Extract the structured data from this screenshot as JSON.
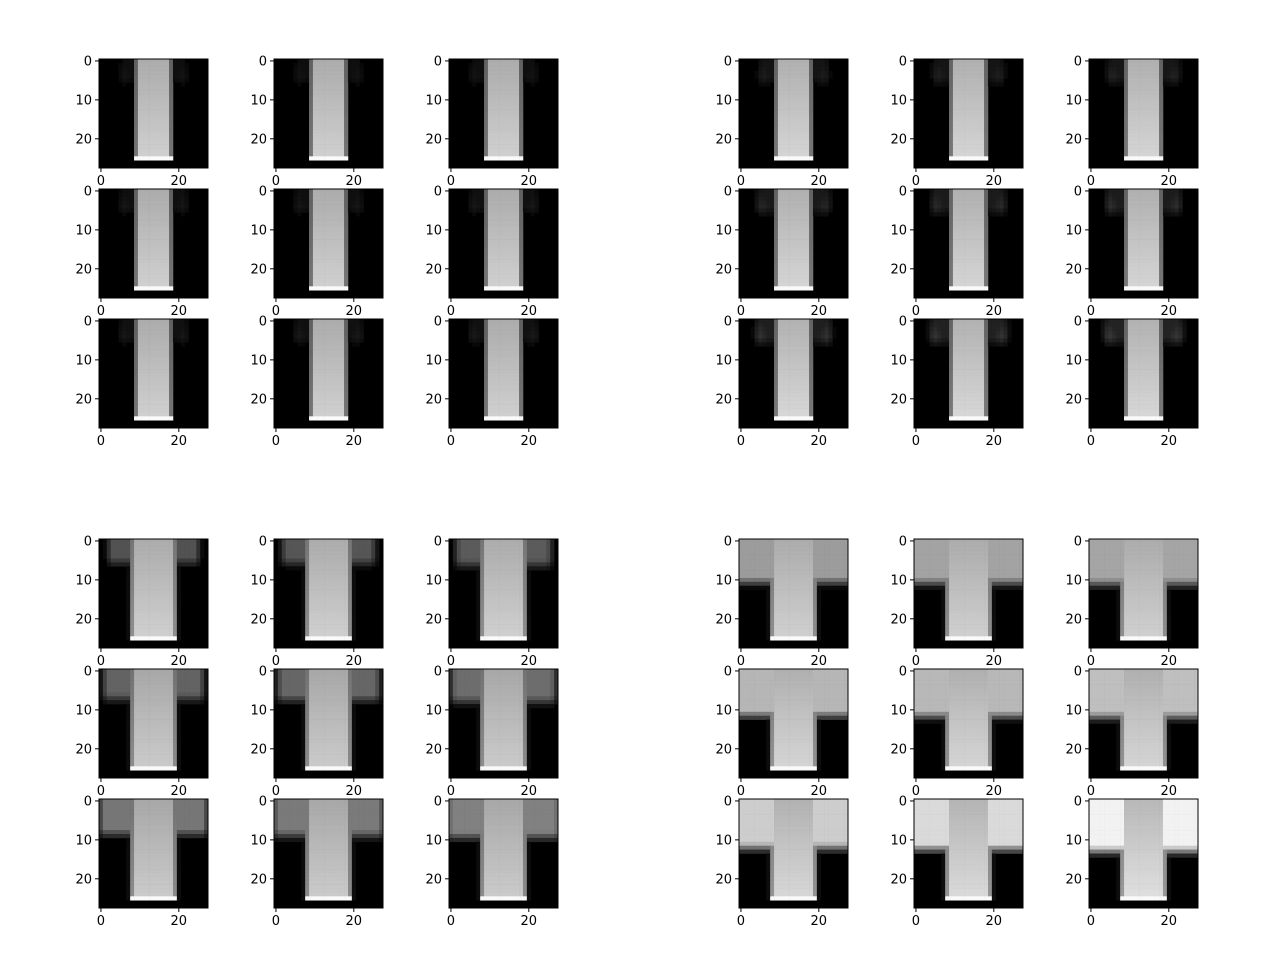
{
  "chart_data": {
    "type": "image-grid",
    "colormap": "gray",
    "image_size": [
      28,
      28
    ],
    "xticks": [
      0,
      20
    ],
    "yticks": [
      0,
      10,
      20
    ],
    "groups": [
      {
        "name": "group-top-left",
        "panels": [
          {
            "x_tick_labels": [
              "0",
              "20"
            ],
            "y_tick_labels": [
              "0",
              "10",
              "20"
            ],
            "shape": "sleeveless",
            "sleeve": 0.0,
            "shoulder": 0.55,
            "bright": 0.82
          },
          {
            "x_tick_labels": [
              "0",
              "20"
            ],
            "y_tick_labels": [
              "0",
              "10",
              "20"
            ],
            "shape": "sleeveless",
            "sleeve": 0.0,
            "shoulder": 0.55,
            "bright": 0.82
          },
          {
            "x_tick_labels": [
              "0",
              "20"
            ],
            "y_tick_labels": [
              "0",
              "10",
              "20"
            ],
            "shape": "sleeveless",
            "sleeve": 0.0,
            "shoulder": 0.55,
            "bright": 0.82
          },
          {
            "x_tick_labels": [
              "0",
              "20"
            ],
            "y_tick_labels": [
              "0",
              "10",
              "20"
            ],
            "shape": "sleeveless",
            "sleeve": 0.02,
            "shoulder": 0.55,
            "bright": 0.82
          },
          {
            "x_tick_labels": [
              "0",
              "20"
            ],
            "y_tick_labels": [
              "0",
              "10",
              "20"
            ],
            "shape": "sleeveless",
            "sleeve": 0.02,
            "shoulder": 0.55,
            "bright": 0.82
          },
          {
            "x_tick_labels": [
              "0",
              "20"
            ],
            "y_tick_labels": [
              "0",
              "10",
              "20"
            ],
            "shape": "sleeveless",
            "sleeve": 0.03,
            "shoulder": 0.55,
            "bright": 0.82
          },
          {
            "x_tick_labels": [
              "0",
              "20"
            ],
            "y_tick_labels": [
              "0",
              "10",
              "20"
            ],
            "shape": "sleeveless",
            "sleeve": 0.03,
            "shoulder": 0.55,
            "bright": 0.82
          },
          {
            "x_tick_labels": [
              "0",
              "20"
            ],
            "y_tick_labels": [
              "0",
              "10",
              "20"
            ],
            "shape": "sleeveless",
            "sleeve": 0.04,
            "shoulder": 0.55,
            "bright": 0.82
          },
          {
            "x_tick_labels": [
              "0",
              "20"
            ],
            "y_tick_labels": [
              "0",
              "10",
              "20"
            ],
            "shape": "sleeveless",
            "sleeve": 0.05,
            "shoulder": 0.55,
            "bright": 0.82
          }
        ]
      },
      {
        "name": "group-top-right",
        "panels": [
          {
            "x_tick_labels": [
              "0",
              "20"
            ],
            "y_tick_labels": [
              "0",
              "10",
              "20"
            ],
            "shape": "sleeveless",
            "sleeve": 0.06,
            "shoulder": 0.6,
            "bright": 0.84
          },
          {
            "x_tick_labels": [
              "0",
              "20"
            ],
            "y_tick_labels": [
              "0",
              "10",
              "20"
            ],
            "shape": "sleeveless",
            "sleeve": 0.08,
            "shoulder": 0.6,
            "bright": 0.84
          },
          {
            "x_tick_labels": [
              "0",
              "20"
            ],
            "y_tick_labels": [
              "0",
              "10",
              "20"
            ],
            "shape": "sleeveless",
            "sleeve": 0.1,
            "shoulder": 0.6,
            "bright": 0.84
          },
          {
            "x_tick_labels": [
              "0",
              "20"
            ],
            "y_tick_labels": [
              "0",
              "10",
              "20"
            ],
            "shape": "sleeveless",
            "sleeve": 0.12,
            "shoulder": 0.62,
            "bright": 0.84
          },
          {
            "x_tick_labels": [
              "0",
              "20"
            ],
            "y_tick_labels": [
              "0",
              "10",
              "20"
            ],
            "shape": "sleeveless",
            "sleeve": 0.14,
            "shoulder": 0.62,
            "bright": 0.84
          },
          {
            "x_tick_labels": [
              "0",
              "20"
            ],
            "y_tick_labels": [
              "0",
              "10",
              "20"
            ],
            "shape": "sleeveless",
            "sleeve": 0.16,
            "shoulder": 0.62,
            "bright": 0.84
          },
          {
            "x_tick_labels": [
              "0",
              "20"
            ],
            "y_tick_labels": [
              "0",
              "10",
              "20"
            ],
            "shape": "sleeveless",
            "sleeve": 0.18,
            "shoulder": 0.64,
            "bright": 0.85
          },
          {
            "x_tick_labels": [
              "0",
              "20"
            ],
            "y_tick_labels": [
              "0",
              "10",
              "20"
            ],
            "shape": "sleeveless",
            "sleeve": 0.2,
            "shoulder": 0.64,
            "bright": 0.85
          },
          {
            "x_tick_labels": [
              "0",
              "20"
            ],
            "y_tick_labels": [
              "0",
              "10",
              "20"
            ],
            "shape": "sleeveless",
            "sleeve": 0.22,
            "shoulder": 0.64,
            "bright": 0.85
          }
        ]
      },
      {
        "name": "group-bottom-left",
        "panels": [
          {
            "x_tick_labels": [
              "0",
              "20"
            ],
            "y_tick_labels": [
              "0",
              "10",
              "20"
            ],
            "shape": "tshirt",
            "sleeve": 0.28,
            "shoulder": 0.65,
            "bright": 0.82
          },
          {
            "x_tick_labels": [
              "0",
              "20"
            ],
            "y_tick_labels": [
              "0",
              "10",
              "20"
            ],
            "shape": "tshirt",
            "sleeve": 0.32,
            "shoulder": 0.65,
            "bright": 0.82
          },
          {
            "x_tick_labels": [
              "0",
              "20"
            ],
            "y_tick_labels": [
              "0",
              "10",
              "20"
            ],
            "shape": "tshirt",
            "sleeve": 0.36,
            "shoulder": 0.66,
            "bright": 0.82
          },
          {
            "x_tick_labels": [
              "0",
              "20"
            ],
            "y_tick_labels": [
              "0",
              "10",
              "20"
            ],
            "shape": "tshirt",
            "sleeve": 0.45,
            "shoulder": 0.68,
            "bright": 0.8
          },
          {
            "x_tick_labels": [
              "0",
              "20"
            ],
            "y_tick_labels": [
              "0",
              "10",
              "20"
            ],
            "shape": "tshirt",
            "sleeve": 0.48,
            "shoulder": 0.68,
            "bright": 0.8
          },
          {
            "x_tick_labels": [
              "0",
              "20"
            ],
            "y_tick_labels": [
              "0",
              "10",
              "20"
            ],
            "shape": "tshirt",
            "sleeve": 0.52,
            "shoulder": 0.7,
            "bright": 0.8
          },
          {
            "x_tick_labels": [
              "0",
              "20"
            ],
            "y_tick_labels": [
              "0",
              "10",
              "20"
            ],
            "shape": "tshirt",
            "sleeve": 0.58,
            "shoulder": 0.72,
            "bright": 0.8
          },
          {
            "x_tick_labels": [
              "0",
              "20"
            ],
            "y_tick_labels": [
              "0",
              "10",
              "20"
            ],
            "shape": "tshirt",
            "sleeve": 0.62,
            "shoulder": 0.72,
            "bright": 0.8
          },
          {
            "x_tick_labels": [
              "0",
              "20"
            ],
            "y_tick_labels": [
              "0",
              "10",
              "20"
            ],
            "shape": "tshirt",
            "sleeve": 0.66,
            "shoulder": 0.74,
            "bright": 0.8
          }
        ]
      },
      {
        "name": "group-bottom-right",
        "panels": [
          {
            "x_tick_labels": [
              "0",
              "20"
            ],
            "y_tick_labels": [
              "0",
              "10",
              "20"
            ],
            "shape": "tshirt",
            "sleeve": 0.78,
            "shoulder": 0.8,
            "bright": 0.82
          },
          {
            "x_tick_labels": [
              "0",
              "20"
            ],
            "y_tick_labels": [
              "0",
              "10",
              "20"
            ],
            "shape": "tshirt",
            "sleeve": 0.8,
            "shoulder": 0.82,
            "bright": 0.82
          },
          {
            "x_tick_labels": [
              "0",
              "20"
            ],
            "y_tick_labels": [
              "0",
              "10",
              "20"
            ],
            "shape": "tshirt",
            "sleeve": 0.82,
            "shoulder": 0.82,
            "bright": 0.82
          },
          {
            "x_tick_labels": [
              "0",
              "20"
            ],
            "y_tick_labels": [
              "0",
              "10",
              "20"
            ],
            "shape": "tshirt",
            "sleeve": 0.86,
            "shoulder": 0.86,
            "bright": 0.84
          },
          {
            "x_tick_labels": [
              "0",
              "20"
            ],
            "y_tick_labels": [
              "0",
              "10",
              "20"
            ],
            "shape": "tshirt",
            "sleeve": 0.88,
            "shoulder": 0.86,
            "bright": 0.84
          },
          {
            "x_tick_labels": [
              "0",
              "20"
            ],
            "y_tick_labels": [
              "0",
              "10",
              "20"
            ],
            "shape": "tshirt",
            "sleeve": 0.9,
            "shoulder": 0.88,
            "bright": 0.84
          },
          {
            "x_tick_labels": [
              "0",
              "20"
            ],
            "y_tick_labels": [
              "0",
              "10",
              "20"
            ],
            "shape": "tshirt",
            "sleeve": 0.92,
            "shoulder": 0.92,
            "bright": 0.85
          },
          {
            "x_tick_labels": [
              "0",
              "20"
            ],
            "y_tick_labels": [
              "0",
              "10",
              "20"
            ],
            "shape": "tshirt",
            "sleeve": 0.95,
            "shoulder": 0.95,
            "bright": 0.86
          },
          {
            "x_tick_labels": [
              "0",
              "20"
            ],
            "y_tick_labels": [
              "0",
              "10",
              "20"
            ],
            "shape": "tshirt",
            "sleeve": 1.0,
            "shoulder": 1.0,
            "bright": 0.88
          }
        ]
      }
    ]
  }
}
